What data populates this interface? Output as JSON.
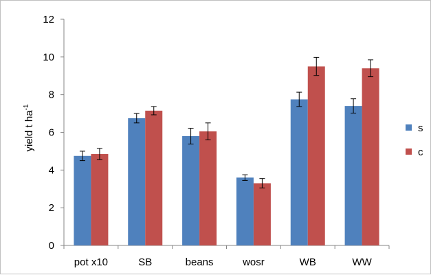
{
  "chart_data": {
    "type": "bar",
    "categories": [
      "pot x10",
      "SB",
      "beans",
      "wosr",
      "WB",
      "WW"
    ],
    "series": [
      {
        "name": "s",
        "color": "#4F81BD",
        "values": [
          4.75,
          6.75,
          5.8,
          3.6,
          7.75,
          7.4
        ],
        "errors": [
          0.25,
          0.25,
          0.42,
          0.15,
          0.38,
          0.38
        ]
      },
      {
        "name": "c",
        "color": "#C0504D",
        "values": [
          4.85,
          7.15,
          6.05,
          3.3,
          9.5,
          9.4
        ],
        "errors": [
          0.3,
          0.22,
          0.45,
          0.25,
          0.48,
          0.45
        ]
      }
    ],
    "ylabel": "yield t ha",
    "ylabel_superscript": "-1",
    "ylim": [
      0,
      12
    ],
    "yticks": [
      0,
      2,
      4,
      6,
      8,
      10,
      12
    ],
    "grid": false,
    "legend_position": "right"
  }
}
